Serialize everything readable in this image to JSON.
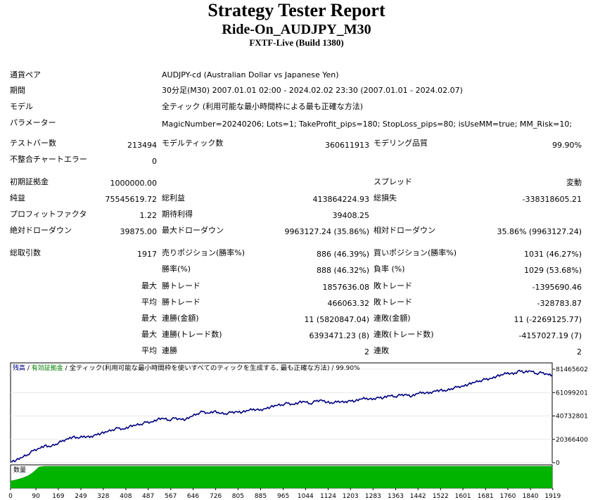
{
  "header": {
    "title": "Strategy Tester Report",
    "expert": "Ride-On_AUDJPY_M30",
    "server": "FXTF-Live (Build 1380)"
  },
  "info": {
    "symbol_label": "通貨ペア",
    "symbol_value": "AUDJPY-cd (Australian Dollar vs Japanese Yen)",
    "period_label": "期間",
    "period_value": "30分足(M30) 2007.01.01 02:00 - 2024.02.02 23:30 (2007.01.01 - 2024.02.07)",
    "model_label": "モデル",
    "model_value": "全ティック (利用可能な最小時間枠による最も正確な方法)",
    "params_label": "パラメーター",
    "params_value": "MagicNumber=20240206; Lots=1; TakeProfit_pips=180; StopLoss_pips=80; isUseMM=true; MM_Risk=10;"
  },
  "stats": {
    "bars_label": "テストバー数",
    "bars_value": "213494",
    "ticks_label": "モデルティック数",
    "ticks_value": "360611913",
    "quality_label": "モデリング品質",
    "quality_value": "99.90%",
    "mismatch_label": "不整合チャートエラー",
    "mismatch_value": "0",
    "deposit_label": "初期証拠金",
    "deposit_value": "1000000.00",
    "spread_label": "スプレッド",
    "spread_value": "変動",
    "net_label": "純益",
    "net_value": "75545619.72",
    "gross_profit_label": "総利益",
    "gross_profit_value": "413864224.93",
    "gross_loss_label": "総損失",
    "gross_loss_value": "-338318605.21",
    "pf_label": "プロフィットファクタ",
    "pf_value": "1.22",
    "payoff_label": "期待利得",
    "payoff_value": "39408.25",
    "abs_dd_label": "絶対ドローダウン",
    "abs_dd_value": "39875.00",
    "max_dd_label": "最大ドローダウン",
    "max_dd_value": "9963127.24 (35.86%)",
    "rel_dd_label": "相対ドローダウン",
    "rel_dd_value": "35.86% (9963127.24)",
    "trades_label": "総取引数",
    "trades_value": "1917",
    "short_label": "売りポジション(勝率%)",
    "short_value": "886 (46.39%)",
    "long_label": "買いポジション(勝率%)",
    "long_value": "1031 (46.27%)",
    "win_pct_label": "勝率(%)",
    "win_pct_value": "888 (46.32%)",
    "loss_pct_label": "負率 (%)",
    "loss_pct_value": "1029 (53.68%)",
    "max_label": "最大",
    "avg_label": "平均",
    "largest_win_label": "勝トレード",
    "largest_win_value": "1857636.08",
    "largest_loss_label": "敗トレード",
    "largest_loss_value": "-1395690.46",
    "avg_win_label": "勝トレード",
    "avg_win_value": "466063.32",
    "avg_loss_label": "敗トレード",
    "avg_loss_value": "-328783.87",
    "max_consec_wins_label": "連勝(金額)",
    "max_consec_wins_value": "11 (5820847.04)",
    "max_consec_losses_label": "連敗(金額)",
    "max_consec_losses_value": "11 (-2269125.77)",
    "max_consec_profit_label": "連勝(トレード数)",
    "max_consec_profit_value": "6393471.23 (8)",
    "max_consec_loss_label": "連敗(トレード数)",
    "max_consec_loss_value": "-4157027.19 (7)",
    "avg_consec_wins_label": "連勝",
    "avg_consec_wins_value": "2",
    "avg_consec_losses_label": "連敗",
    "avg_consec_losses_value": "2"
  },
  "chart_data": {
    "type": "line",
    "legend": {
      "balance": "残高",
      "sep1": " / ",
      "equity": "有効証拠金",
      "sep2": " / ",
      "model": "全ティック(利用可能な最小時間枠を使いすべてのティックを生成する, 最も正確な方法)",
      "sep3": " / ",
      "quality": "99.90%"
    },
    "lot_label": "数量",
    "y_ticks": [
      "81465602",
      "61099201",
      "40732801",
      "20366400",
      "0"
    ],
    "y_tick_values": [
      81465602,
      61099201,
      40732801,
      20366400,
      0
    ],
    "ylim": [
      0,
      87000000
    ],
    "x_ticks": [
      "0",
      "90",
      "169",
      "249",
      "328",
      "408",
      "487",
      "567",
      "646",
      "726",
      "805",
      "885",
      "965",
      "1044",
      "1124",
      "1203",
      "1283",
      "1363",
      "1442",
      "1522",
      "1601",
      "1681",
      "1760",
      "1840",
      "1919"
    ],
    "x_tick_values": [
      0,
      90,
      169,
      249,
      328,
      408,
      487,
      567,
      646,
      726,
      805,
      885,
      965,
      1044,
      1124,
      1203,
      1283,
      1363,
      1442,
      1522,
      1601,
      1681,
      1760,
      1840,
      1919
    ],
    "xlim": [
      0,
      1917
    ],
    "balance": {
      "x": [
        0,
        20,
        40,
        60,
        80,
        100,
        120,
        140,
        160,
        180,
        200,
        220,
        240,
        260,
        280,
        300,
        320,
        340,
        360,
        380,
        400,
        420,
        440,
        460,
        480,
        500,
        520,
        540,
        560,
        580,
        600,
        620,
        640,
        660,
        680,
        700,
        720,
        740,
        760,
        780,
        800,
        820,
        840,
        860,
        880,
        900,
        920,
        940,
        960,
        980,
        1000,
        1020,
        1040,
        1060,
        1080,
        1100,
        1120,
        1140,
        1160,
        1180,
        1200,
        1220,
        1240,
        1260,
        1280,
        1300,
        1320,
        1340,
        1360,
        1380,
        1400,
        1420,
        1440,
        1460,
        1480,
        1500,
        1520,
        1540,
        1560,
        1580,
        1600,
        1620,
        1640,
        1660,
        1680,
        1700,
        1720,
        1740,
        1760,
        1780,
        1800,
        1820,
        1840,
        1860,
        1880,
        1900,
        1917
      ],
      "y": [
        1000000,
        2200000,
        4500000,
        7000000,
        10500000,
        12500000,
        14800000,
        13800000,
        16200000,
        18500000,
        20800000,
        22500000,
        21300000,
        23200000,
        22000000,
        24500000,
        25500000,
        26800000,
        28600000,
        30200000,
        29300000,
        31500000,
        32500000,
        33500000,
        35200000,
        35600000,
        37800000,
        38500000,
        37100000,
        38800000,
        38200000,
        37700000,
        40200000,
        42600000,
        44500000,
        43200000,
        44800000,
        43000000,
        42700000,
        43800000,
        44600000,
        44000000,
        45400000,
        46800000,
        45600000,
        47200000,
        48500000,
        49800000,
        50500000,
        51900000,
        50800000,
        52500000,
        53200000,
        51400000,
        53600000,
        54800000,
        52700000,
        51600000,
        53800000,
        52400000,
        54300000,
        53700000,
        55400000,
        56300000,
        54900000,
        57200000,
        56400000,
        58400000,
        57600000,
        58900000,
        59600000,
        57800000,
        60200000,
        61400000,
        60300000,
        62600000,
        63200000,
        62400000,
        64600000,
        65800000,
        66900000,
        68200000,
        69800000,
        71300000,
        72600000,
        73500000,
        75300000,
        76400000,
        78500000,
        77000000,
        80500000,
        78800000,
        79900000,
        77700000,
        78400000,
        77200000,
        76545619
      ]
    },
    "lots": {
      "x": [
        0,
        20,
        40,
        60,
        80,
        100,
        120,
        140,
        160,
        180,
        200,
        1917
      ],
      "y": [
        0.32,
        0.38,
        0.45,
        0.55,
        0.72,
        0.96,
        1,
        1,
        1,
        1,
        1,
        1
      ]
    }
  }
}
